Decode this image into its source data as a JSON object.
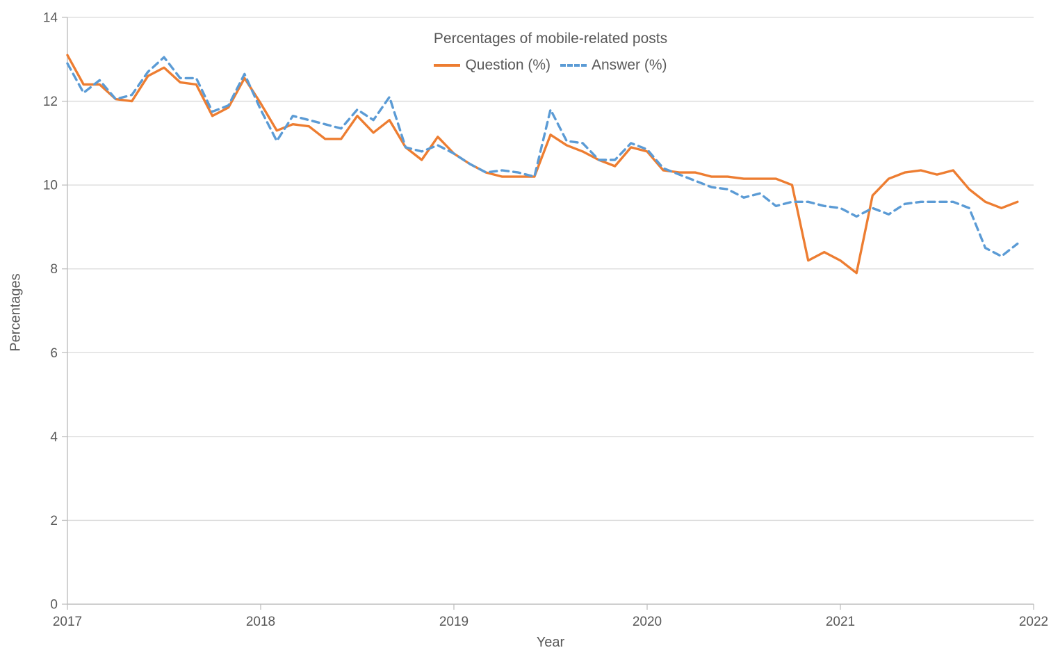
{
  "title": "Percentages of mobile-related posts",
  "legend": [
    {
      "label": "Question (%)"
    },
    {
      "label": "Answer (%)"
    }
  ],
  "chart_data": {
    "type": "line",
    "title": "Percentages of mobile-related posts",
    "xlabel": "Year",
    "ylabel": "Percentages",
    "x_tick_labels": [
      "2017",
      "2018",
      "2019",
      "2020",
      "2021",
      "2022"
    ],
    "y_ticks": [
      0,
      2,
      4,
      6,
      8,
      10,
      12,
      14
    ],
    "ylim": [
      0,
      14
    ],
    "x_start": "2017-01",
    "x_interval": "monthly",
    "n_points": 60,
    "grid": "horizontal",
    "legend_position": "top-center",
    "colors": {
      "text": "#595959",
      "axis": "#BFBFBF",
      "gridline": "#D9D9D9",
      "background": "#FFFFFF"
    },
    "series": [
      {
        "name": "Question (%)",
        "color": "#ED7D31",
        "style": "solid",
        "values": [
          13.1,
          12.4,
          12.4,
          12.05,
          12.0,
          12.6,
          12.8,
          12.45,
          12.4,
          11.65,
          11.85,
          12.55,
          11.95,
          11.3,
          11.45,
          11.4,
          11.1,
          11.1,
          11.65,
          11.25,
          11.55,
          10.9,
          10.6,
          11.15,
          10.75,
          10.5,
          10.3,
          10.2,
          10.2,
          10.2,
          11.2,
          10.95,
          10.8,
          10.6,
          10.45,
          10.9,
          10.8,
          10.35,
          10.3,
          10.3,
          10.2,
          10.2,
          10.15,
          10.15,
          10.15,
          10.0,
          8.2,
          8.4,
          8.2,
          7.9,
          9.75,
          10.15,
          10.3,
          10.35,
          10.25,
          10.35,
          9.9,
          9.6,
          9.45,
          9.6
        ]
      },
      {
        "name": "Answer (%)",
        "color": "#5B9BD5",
        "style": "dashed",
        "values": [
          12.9,
          12.2,
          12.5,
          12.05,
          12.15,
          12.7,
          13.05,
          12.55,
          12.55,
          11.75,
          11.9,
          12.65,
          11.8,
          11.05,
          11.65,
          11.55,
          11.45,
          11.35,
          11.8,
          11.55,
          12.1,
          10.9,
          10.8,
          10.95,
          10.75,
          10.5,
          10.3,
          10.35,
          10.3,
          10.2,
          11.8,
          11.05,
          11.0,
          10.6,
          10.6,
          11.0,
          10.85,
          10.4,
          10.25,
          10.1,
          9.95,
          9.9,
          9.7,
          9.8,
          9.5,
          9.6,
          9.6,
          9.5,
          9.45,
          9.25,
          9.45,
          9.3,
          9.55,
          9.6,
          9.6,
          9.6,
          9.45,
          8.5,
          8.3,
          8.6
        ]
      }
    ]
  }
}
